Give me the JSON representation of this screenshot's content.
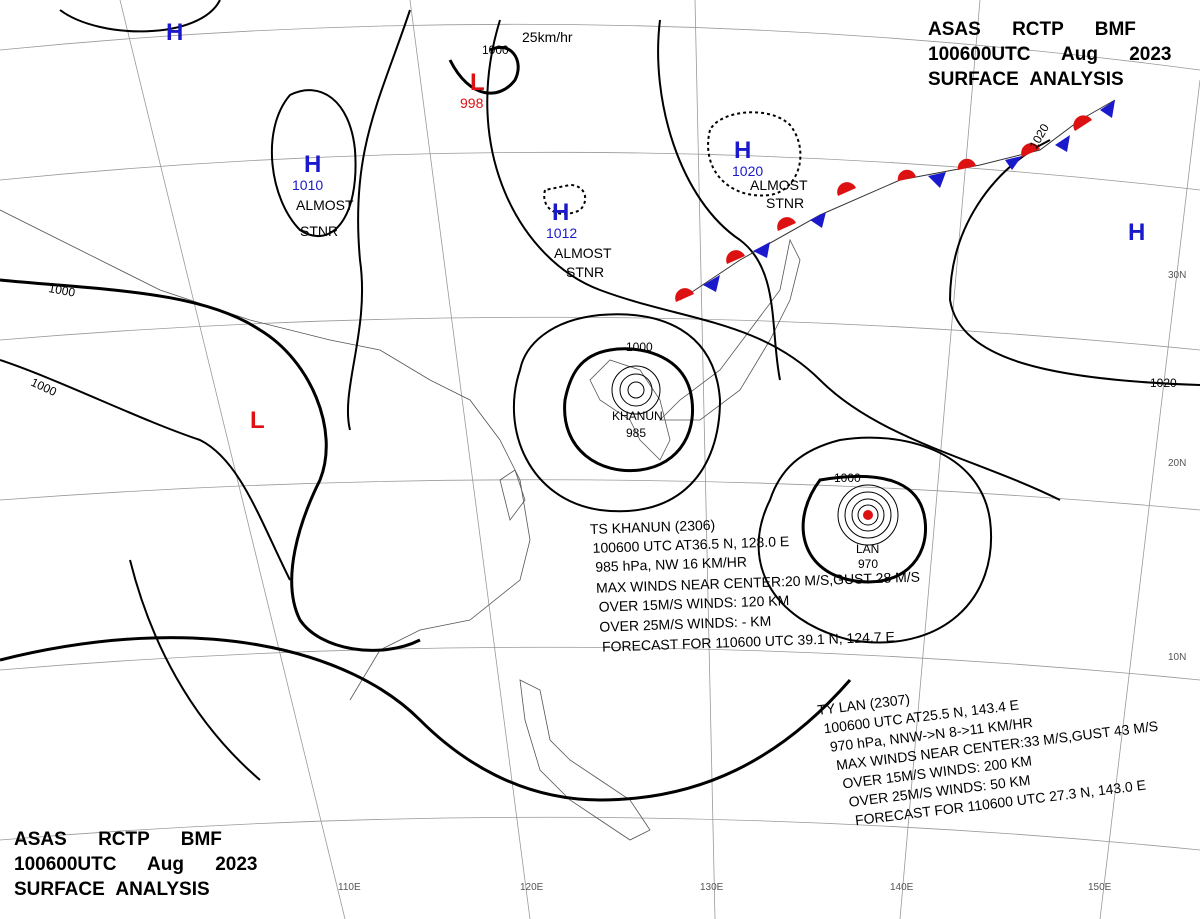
{
  "header_top": {
    "lines": [
      "ASAS RCTP BMF",
      "100600UTC Aug 2023",
      "SURFACE ANALYSIS"
    ]
  },
  "header_bottom": {
    "lines": [
      "ASAS RCTP BMF",
      "100600UTC Aug 2023",
      "SURFACE ANALYSIS"
    ]
  },
  "wind_scale": "25km/hr",
  "pressure_centers": [
    {
      "symbol": "H"
    },
    {
      "symbol": "L",
      "value": "998"
    },
    {
      "symbol": "H",
      "value": "1010",
      "note": [
        "ALMOST",
        "STNR"
      ]
    },
    {
      "symbol": "H",
      "value": "1012",
      "note": [
        "ALMOST",
        "STNR"
      ]
    },
    {
      "symbol": "H",
      "value": "1020",
      "note": [
        "ALMOST",
        "STNR"
      ]
    },
    {
      "symbol": "H"
    },
    {
      "symbol": "L"
    },
    {
      "name": "KHANUN",
      "value": "985"
    },
    {
      "name": "LAN",
      "value": "970"
    }
  ],
  "isobar_labels": [
    "1000",
    "1000",
    "1000",
    "1000",
    "1000",
    "1020",
    "1020"
  ],
  "latitude_labels": [
    "30N",
    "20N",
    "10N"
  ],
  "longitude_labels": [
    "110E",
    "120E",
    "130E",
    "140E",
    "150E"
  ],
  "storms": [
    {
      "lines": [
        "TS KHANUN (2306)",
        "100600 UTC AT36.5 N, 128.0 E",
        "985 hPa, NW 16 KM/HR",
        "MAX WINDS NEAR CENTER:20 M/S,GUST 28 M/S",
        "OVER 15M/S WINDS: 120 KM",
        "OVER 25M/S WINDS: - KM",
        "FORECAST FOR 110600 UTC 39.1 N, 124.7 E"
      ]
    },
    {
      "lines": [
        "TY LAN (2307)",
        "100600 UTC AT25.5 N, 143.4 E",
        "970 hPa, NNW->N 8->11 KM/HR",
        "MAX WINDS NEAR CENTER:33 M/S,GUST 43 M/S",
        "OVER 15M/S WINDS: 200 KM",
        "OVER 25M/S WINDS: 50 KM",
        "FORECAST FOR 110600 UTC 27.3 N, 143.0 E"
      ]
    }
  ]
}
